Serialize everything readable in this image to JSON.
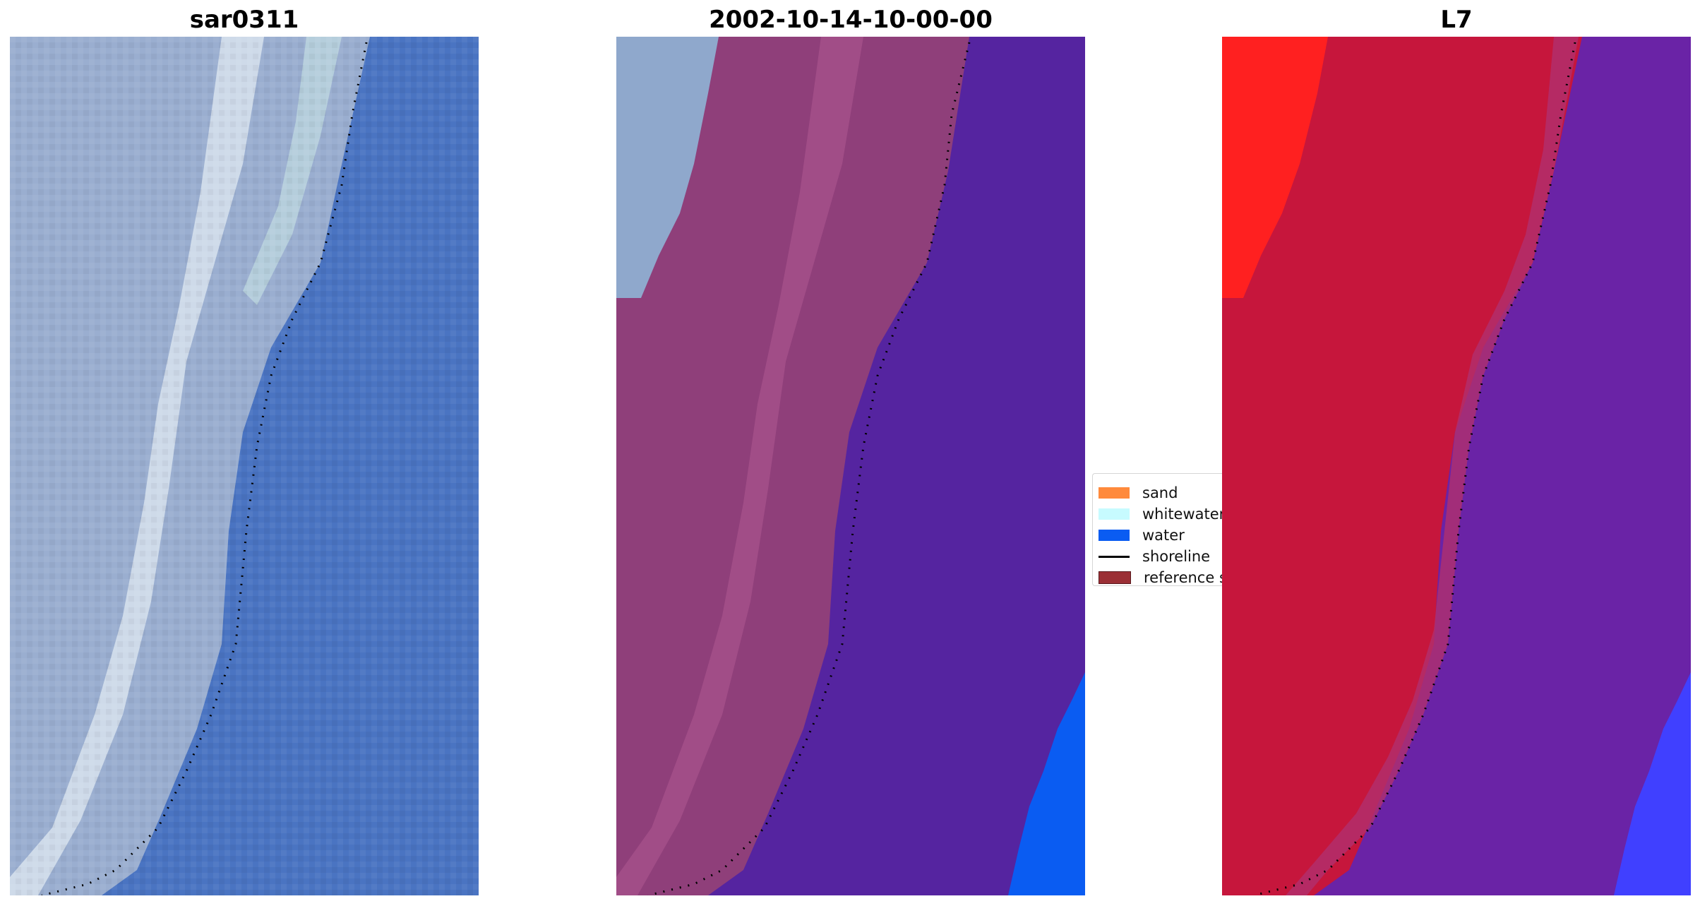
{
  "panels": [
    {
      "title": "sar0311"
    },
    {
      "title": "2002-10-14-10-00-00"
    },
    {
      "title": "L7"
    }
  ],
  "legend": {
    "items": [
      {
        "label": "sand",
        "color": "#ff8a3c",
        "kind": "patch"
      },
      {
        "label": "whitewater",
        "color": "#c7fbff",
        "kind": "patch"
      },
      {
        "label": "water",
        "color": "#0a5cf2",
        "kind": "patch"
      },
      {
        "label": "shoreline",
        "color": "#000000",
        "kind": "line"
      },
      {
        "label": "reference s",
        "color": "#9b2f35",
        "kind": "patch"
      }
    ]
  },
  "colors": {
    "rgb_water": "#4a74c2",
    "rgb_land": "#9aaed0",
    "rgb_surf": "#dfe8f2",
    "class_sand_overlay": "#8f3f7a",
    "class_water_overlay": "#5524a0",
    "class_land": "#8fa8cc",
    "class_water_pure": "#0a5cf2",
    "ndwi_land": "#c6163c",
    "ndwi_bright": "#ff2020",
    "ndwi_water": "#6a23a6",
    "ndwi_blue": "#4040ff"
  }
}
